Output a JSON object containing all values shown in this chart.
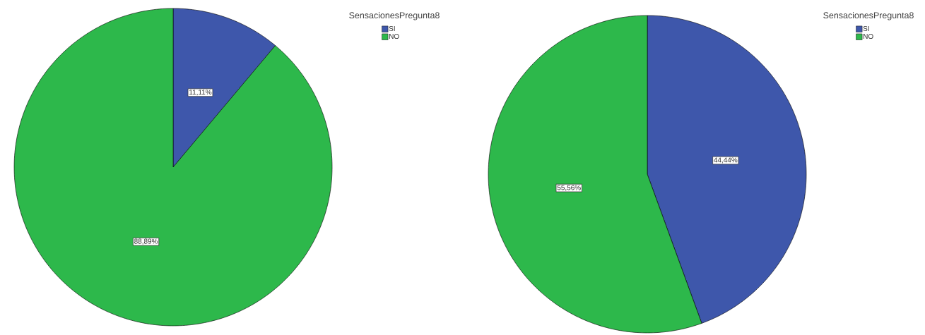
{
  "chart_data": [
    {
      "type": "pie",
      "legend_title": "SensacionesPregunta8",
      "categories": [
        "SI",
        "NO"
      ],
      "values": [
        11.11,
        88.89
      ],
      "value_labels": [
        "11,11%",
        "88,89%"
      ],
      "colors": [
        "#3e57ab",
        "#2db84b"
      ],
      "legend": "top right"
    },
    {
      "type": "pie",
      "legend_title": "SensacionesPregunta8",
      "categories": [
        "SI",
        "NO"
      ],
      "values": [
        44.44,
        55.56
      ],
      "value_labels": [
        "44,44%",
        "55,56%"
      ],
      "colors": [
        "#3e57ab",
        "#2db84b"
      ],
      "legend": "top right"
    }
  ]
}
